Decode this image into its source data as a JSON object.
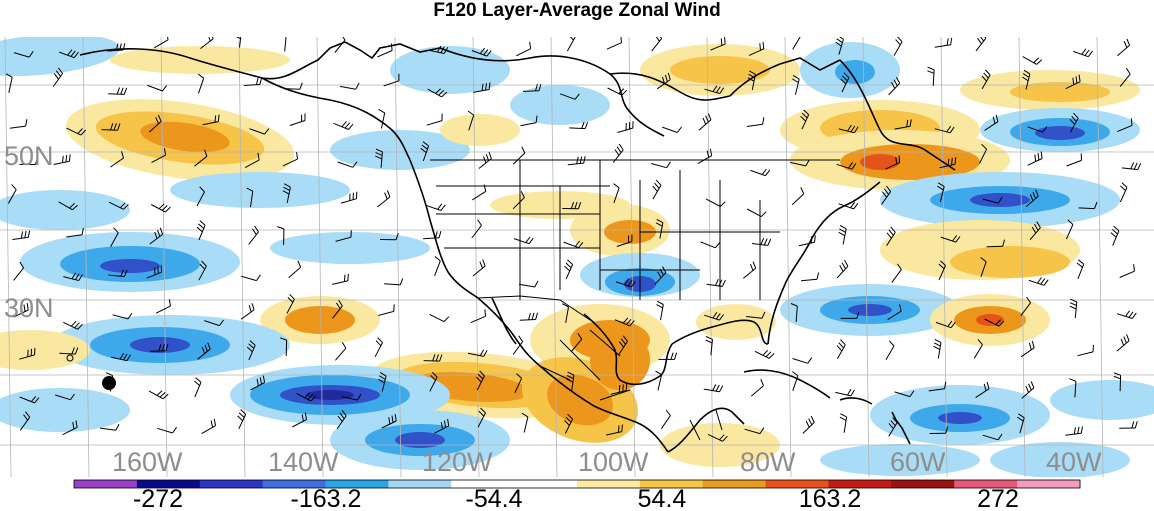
{
  "title": "F120 Layer-Average Zonal Wind",
  "lat_labels": [
    "50N",
    "30N"
  ],
  "lon_labels": [
    "160W",
    "140W",
    "120W",
    "100W",
    "80W",
    "60W",
    "40W"
  ],
  "colorbar": {
    "colors": [
      "#9a3fc9",
      "#0a0a8c",
      "#2b34c4",
      "#3f6fe0",
      "#27a6e8",
      "#a3d8f5",
      "#ffffff",
      "#ffffff",
      "#fbeaa0",
      "#f6c746",
      "#eb9a1b",
      "#e9501a",
      "#c51b14",
      "#9c1210",
      "#e8587c",
      "#f49abc"
    ],
    "tick_labels": [
      "-272",
      "-163.2",
      "-54.4",
      "54.4",
      "163.2",
      "272"
    ]
  },
  "palette": {
    "blue_light": "#a9dcf6",
    "blue_mid": "#3ea9ea",
    "blue_dark": "#3151c9",
    "blue_deep": "#202a9c",
    "yellow": "#fbe8a0",
    "orange_light": "#f6c449",
    "orange": "#ec961c",
    "red": "#e45418"
  }
}
